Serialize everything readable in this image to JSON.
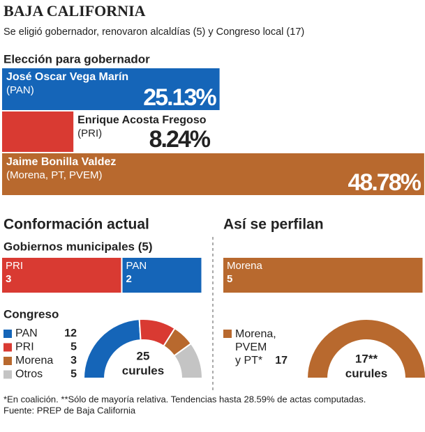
{
  "title": "BAJA CALIFORNIA",
  "subtitle": "Se eligió gobernador, renovaron alcaldías (5) y Congreso local (17)",
  "governor": {
    "heading": "Elección para gobernador",
    "candidates": [
      {
        "name": "José Oscar Vega Marín",
        "party": "(PAN)",
        "value": 25.13,
        "label": "25.13%",
        "color": "#1565b8"
      },
      {
        "name": "Enrique Acosta Fregoso",
        "party": "(PRI)",
        "value": 8.24,
        "label": "8.24%",
        "color": "#d93a32"
      },
      {
        "name": "Jaime Bonilla Valdez",
        "party": "(Morena, PT, PVEM)",
        "value": 48.78,
        "label": "48.78%",
        "color": "#b8692e"
      }
    ]
  },
  "current": {
    "heading": "Conformación actual",
    "municipal": {
      "heading": "Gobiernos municipales (5)",
      "segments": [
        {
          "name": "PRI",
          "value": 3,
          "color": "#d93a32"
        },
        {
          "name": "PAN",
          "value": 2,
          "color": "#1565b8"
        }
      ]
    },
    "congress": {
      "heading": "Congreso",
      "segments": [
        {
          "name": "PAN",
          "value": 12,
          "color": "#1565b8"
        },
        {
          "name": "PRI",
          "value": 5,
          "color": "#d93a32"
        },
        {
          "name": "Morena",
          "value": 3,
          "color": "#b8692e"
        },
        {
          "name": "Otros",
          "value": 5,
          "color": "#c4c4c4"
        }
      ],
      "total": "25",
      "unit": "curules"
    }
  },
  "projected": {
    "heading": "Así se perfilan",
    "municipal": {
      "segments": [
        {
          "name": "Morena",
          "value": 5,
          "color": "#b8692e"
        }
      ]
    },
    "congress": {
      "segments": [
        {
          "name_lines": [
            "Morena,",
            "PVEM",
            "y PT*"
          ],
          "value": 17,
          "color": "#b8692e"
        }
      ],
      "total": "17**",
      "unit": "curules"
    }
  },
  "notes": [
    "*En coalición. **Sólo de mayoría relativa. Tendencias hasta 28.59% de actas computadas.",
    "Fuente: PREP de Baja California"
  ]
}
